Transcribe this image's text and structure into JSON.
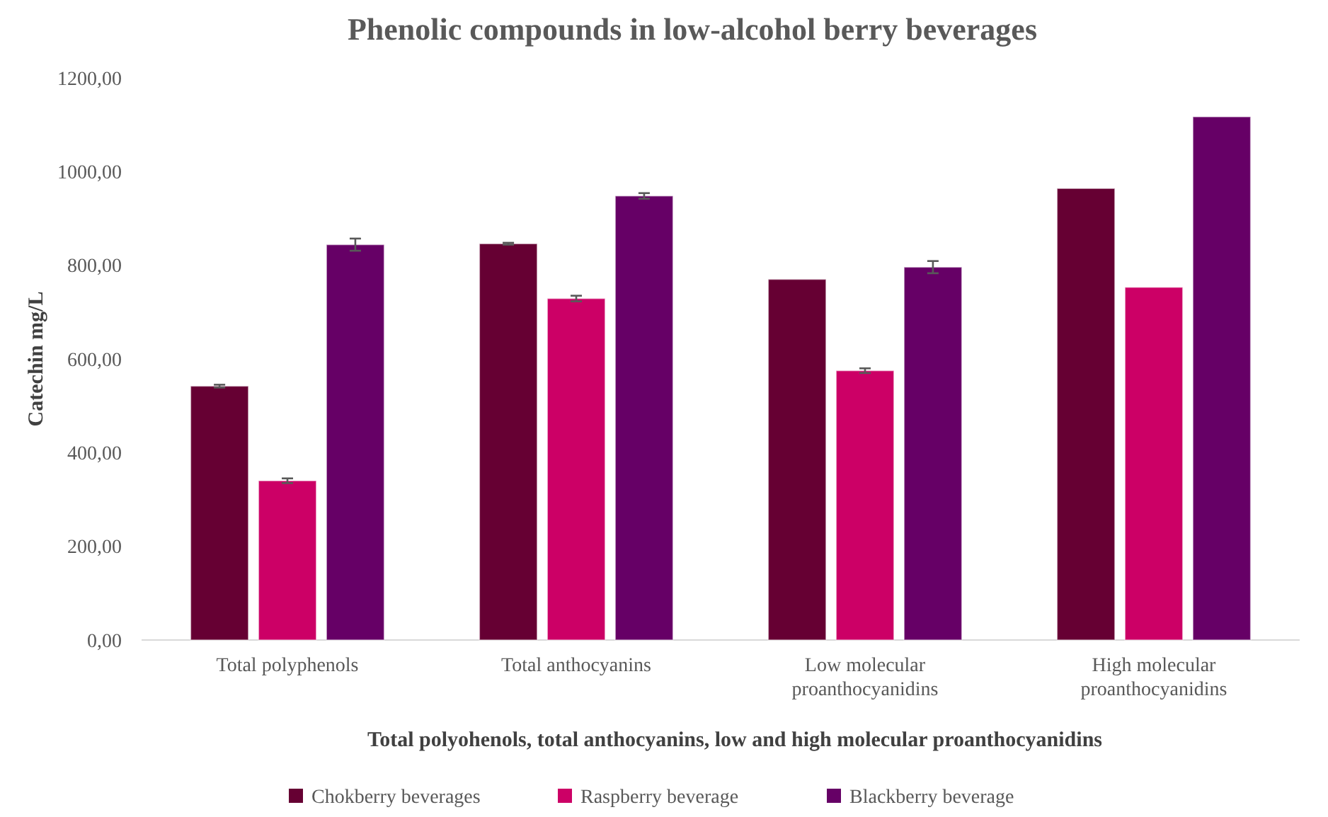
{
  "chart_data": {
    "type": "bar",
    "title": "Phenolic compounds in low-alcohol berry beverages",
    "xlabel": "Total polyohenols, total anthocyanins, low and high molecular proanthocyanidins",
    "ylabel": "Catechin mg/L",
    "categories": [
      "Total polyphenols",
      "Total anthocyanins",
      "Low molecular proanthocyanidins",
      "High molecular proanthocyanidins"
    ],
    "series": [
      {
        "name": "Chokberry beverages",
        "color": "#660033",
        "values": [
          542,
          846,
          770,
          964
        ],
        "errors": [
          3,
          2,
          null,
          null
        ]
      },
      {
        "name": "Raspberry beverage",
        "color": "#cc0066",
        "values": [
          340,
          729,
          575,
          753
        ],
        "errors": [
          5,
          6,
          5,
          null
        ]
      },
      {
        "name": "Blackberry beverage",
        "color": "#660066",
        "values": [
          844,
          948,
          796,
          1117
        ],
        "errors": [
          13,
          6,
          13,
          null
        ]
      }
    ],
    "ylim": [
      0,
      1200
    ],
    "yticks": [
      {
        "value": 0,
        "label": "0,00"
      },
      {
        "value": 200,
        "label": "200,00"
      },
      {
        "value": 400,
        "label": "400,00"
      },
      {
        "value": 600,
        "label": "600,00"
      },
      {
        "value": 800,
        "label": "800,00"
      },
      {
        "value": 1000,
        "label": "1000,00"
      },
      {
        "value": 1200,
        "label": "1200,00"
      }
    ],
    "legend": "bottom"
  }
}
